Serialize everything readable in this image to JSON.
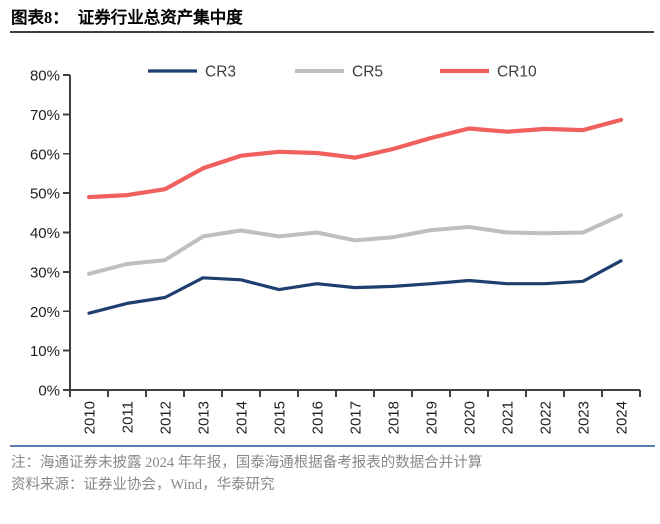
{
  "header": {
    "label": "图表8：",
    "title": "证券行业总资产集中度"
  },
  "chart_data": {
    "type": "line",
    "title": "证券行业总资产集中度",
    "categories": [
      "2010",
      "2011",
      "2012",
      "2013",
      "2014",
      "2015",
      "2016",
      "2017",
      "2018",
      "2019",
      "2020",
      "2021",
      "2022",
      "2023",
      "2024"
    ],
    "series": [
      {
        "name": "CR3",
        "color": "#1e3f6f",
        "values": [
          19.5,
          22.0,
          23.5,
          28.5,
          28.0,
          25.5,
          27.0,
          26.0,
          26.3,
          27.0,
          27.8,
          27.0,
          27.0,
          27.6,
          32.8
        ]
      },
      {
        "name": "CR5",
        "color": "#bfbfbf",
        "values": [
          29.5,
          32.0,
          33.0,
          39.0,
          40.5,
          39.0,
          40.0,
          38.0,
          38.8,
          40.6,
          41.4,
          40.0,
          39.8,
          40.0,
          44.4
        ]
      },
      {
        "name": "CR10",
        "color": "#f0605d",
        "values": [
          49.0,
          49.5,
          51.0,
          56.3,
          59.5,
          60.5,
          60.2,
          59.0,
          61.2,
          64.0,
          66.4,
          65.6,
          66.3,
          66.0,
          68.6
        ]
      }
    ],
    "ylim": [
      0,
      80
    ],
    "ytick_step": 10,
    "ytick_suffix": "%",
    "grid": false,
    "legend_position": "top",
    "axis_color": "#404040",
    "tick_label_color": "#1f1f1f",
    "legend_label_color": "#3d3d3d"
  },
  "footer": {
    "note": "注：海通证券未披露 2024 年年报，国泰海通根据备考报表的数据合并计算",
    "source": "资料来源：证券业协会，Wind，华泰研究"
  }
}
